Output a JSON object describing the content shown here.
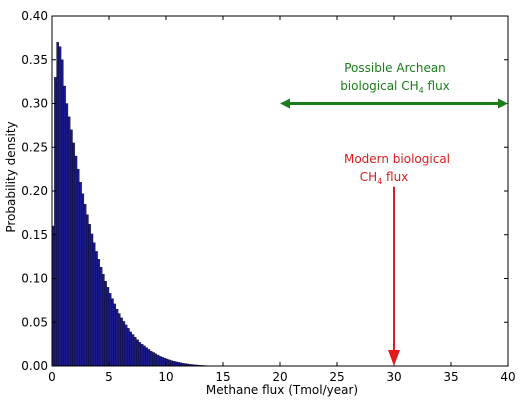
{
  "chart_data": {
    "type": "bar",
    "xlabel": "Methane flux (Tmol/year)",
    "ylabel": "Probability density",
    "xlim": [
      0,
      40
    ],
    "ylim": [
      0,
      0.4
    ],
    "xticks": [
      "0",
      "5",
      "10",
      "15",
      "20",
      "25",
      "30",
      "35",
      "40"
    ],
    "yticks": [
      "0.00",
      "0.05",
      "0.10",
      "0.15",
      "0.20",
      "0.25",
      "0.30",
      "0.35",
      "0.40"
    ],
    "bin_width": 0.2,
    "bins": [
      [
        0.0,
        0.16
      ],
      [
        0.2,
        0.33
      ],
      [
        0.4,
        0.37
      ],
      [
        0.6,
        0.365
      ],
      [
        0.8,
        0.35
      ],
      [
        1.0,
        0.32
      ],
      [
        1.2,
        0.3
      ],
      [
        1.4,
        0.285
      ],
      [
        1.6,
        0.27
      ],
      [
        1.8,
        0.255
      ],
      [
        2.0,
        0.24
      ],
      [
        2.2,
        0.225
      ],
      [
        2.4,
        0.21
      ],
      [
        2.6,
        0.197
      ],
      [
        2.8,
        0.185
      ],
      [
        3.0,
        0.173
      ],
      [
        3.2,
        0.162
      ],
      [
        3.4,
        0.151
      ],
      [
        3.6,
        0.141
      ],
      [
        3.8,
        0.131
      ],
      [
        4.0,
        0.122
      ],
      [
        4.2,
        0.113
      ],
      [
        4.4,
        0.105
      ],
      [
        4.6,
        0.097
      ],
      [
        4.8,
        0.09
      ],
      [
        5.0,
        0.083
      ],
      [
        5.2,
        0.077
      ],
      [
        5.4,
        0.071
      ],
      [
        5.6,
        0.065
      ],
      [
        5.8,
        0.06
      ],
      [
        6.0,
        0.055
      ],
      [
        6.2,
        0.051
      ],
      [
        6.4,
        0.047
      ],
      [
        6.6,
        0.043
      ],
      [
        6.8,
        0.039
      ],
      [
        7.0,
        0.036
      ],
      [
        7.2,
        0.033
      ],
      [
        7.4,
        0.03
      ],
      [
        7.6,
        0.027
      ],
      [
        7.8,
        0.025
      ],
      [
        8.0,
        0.023
      ],
      [
        8.2,
        0.021
      ],
      [
        8.4,
        0.019
      ],
      [
        8.6,
        0.017
      ],
      [
        8.8,
        0.0155
      ],
      [
        9.0,
        0.014
      ],
      [
        9.2,
        0.0125
      ],
      [
        9.4,
        0.011
      ],
      [
        9.6,
        0.01
      ],
      [
        9.8,
        0.009
      ],
      [
        10.0,
        0.008
      ],
      [
        10.2,
        0.007
      ],
      [
        10.4,
        0.0062
      ],
      [
        10.6,
        0.0055
      ],
      [
        10.8,
        0.0048
      ],
      [
        11.0,
        0.0042
      ],
      [
        11.2,
        0.0037
      ],
      [
        11.4,
        0.0032
      ],
      [
        11.6,
        0.0028
      ],
      [
        11.8,
        0.0024
      ],
      [
        12.0,
        0.002
      ],
      [
        12.2,
        0.0017
      ],
      [
        12.4,
        0.0014
      ],
      [
        12.6,
        0.0012
      ],
      [
        12.8,
        0.001
      ],
      [
        13.0,
        0.0008
      ],
      [
        13.2,
        0.0006
      ],
      [
        13.4,
        0.0005
      ],
      [
        13.6,
        0.0004
      ],
      [
        13.8,
        0.0003
      ],
      [
        14.0,
        0.0002
      ],
      [
        14.2,
        0.00015
      ],
      [
        14.4,
        0.0001
      ]
    ],
    "bar_color": "#1a1a8c",
    "annotations": [
      {
        "id": "archean",
        "lines": [
          "Possible Archean",
          "biological CH",
          "4",
          " flux"
        ],
        "color": "#1a7d1a",
        "arrow": "double",
        "x_range": [
          20,
          40
        ],
        "y": 0.3
      },
      {
        "id": "modern",
        "lines": [
          "Modern biological",
          "CH",
          "4",
          " flux"
        ],
        "color": "#e01b1b",
        "arrow": "down",
        "x": 30,
        "y_range": [
          0,
          0.205
        ]
      }
    ]
  }
}
